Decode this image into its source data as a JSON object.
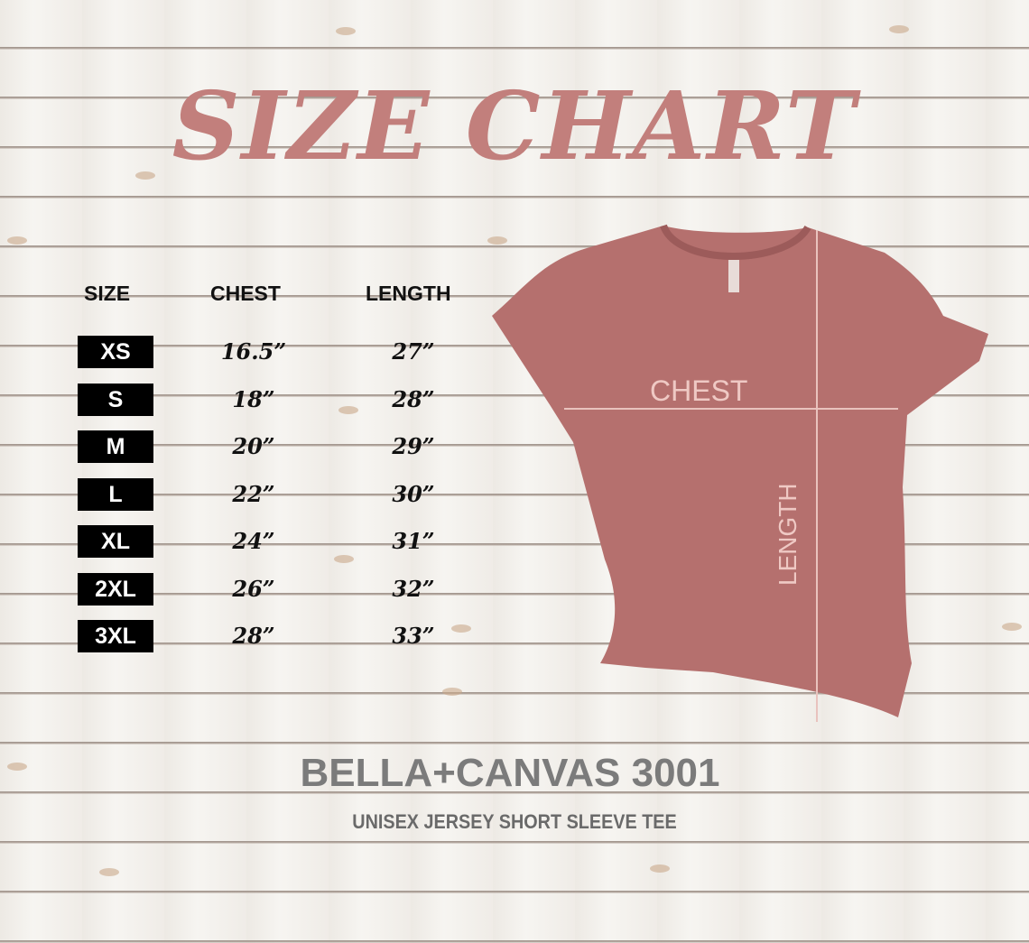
{
  "title": "SIZE CHART",
  "table": {
    "headers": [
      "SIZE",
      "CHEST",
      "LENGTH"
    ],
    "rows": [
      {
        "size": "XS",
        "chest": "16.5”",
        "length": "27”"
      },
      {
        "size": "S",
        "chest": "18”",
        "length": "28”"
      },
      {
        "size": "M",
        "chest": "20”",
        "length": "29”"
      },
      {
        "size": "L",
        "chest": "22”",
        "length": "30”"
      },
      {
        "size": "XL",
        "chest": "24”",
        "length": "31”"
      },
      {
        "size": "2XL",
        "chest": "26”",
        "length": "32”"
      },
      {
        "size": "3XL",
        "chest": "28”",
        "length": "33”"
      }
    ]
  },
  "shirt": {
    "chest_label": "CHEST",
    "length_label": "LENGTH",
    "color": "#b5706e"
  },
  "brand": "BELLA+CANVAS 3001",
  "subtitle": "UNISEX JERSEY SHORT SLEEVE TEE"
}
